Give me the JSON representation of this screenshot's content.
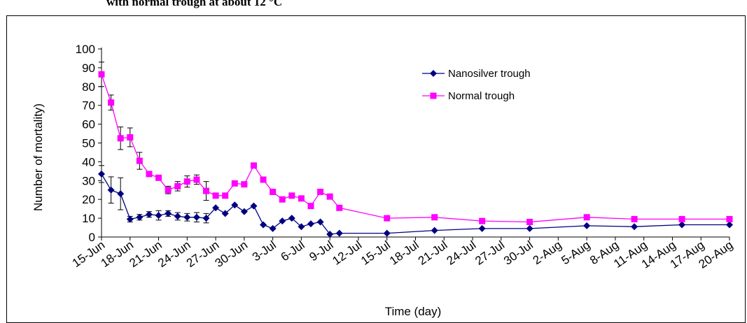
{
  "caption": "with normal trough at about 12 °C",
  "chart_data": {
    "type": "line",
    "title": "",
    "xlabel": "Time (day)",
    "ylabel": "Number of mortality)",
    "ylim": [
      0,
      100
    ],
    "yticks": [
      0,
      10,
      20,
      30,
      40,
      50,
      60,
      70,
      80,
      90,
      100
    ],
    "x_range_days": "15-Jun to 20-Aug",
    "xtick_labels": [
      "15-Jun",
      "18-Jun",
      "21-Jun",
      "24-Jun",
      "27-Jun",
      "30-Jun",
      "3-Jul",
      "6-Jul",
      "9-Jul",
      "12-Jul",
      "15-Jul",
      "18-Jul",
      "21-Jul",
      "24-Jul",
      "27-Jul",
      "30-Jul",
      "2-Aug",
      "5-Aug",
      "8-Aug",
      "11-Aug",
      "14-Aug",
      "17-Aug",
      "20-Aug"
    ],
    "legend_position": "top-right",
    "grid": false,
    "series": [
      {
        "name": "Nanosilver trough",
        "color": "#00007f",
        "marker": "diamond",
        "points": [
          {
            "x": "15-Jun",
            "y": 33.5,
            "err": 4.5
          },
          {
            "x": "16-Jun",
            "y": 25,
            "err": 7
          },
          {
            "x": "17-Jun",
            "y": 23,
            "err": 8.5
          },
          {
            "x": "18-Jun",
            "y": 9.5,
            "err": 1.5
          },
          {
            "x": "19-Jun",
            "y": 10.5,
            "err": 1.5
          },
          {
            "x": "20-Jun",
            "y": 12,
            "err": 1.5
          },
          {
            "x": "21-Jun",
            "y": 11.5,
            "err": 2.5
          },
          {
            "x": "22-Jun",
            "y": 12.5,
            "err": 1.5
          },
          {
            "x": "23-Jun",
            "y": 11,
            "err": 2
          },
          {
            "x": "24-Jun",
            "y": 10.5,
            "err": 2
          },
          {
            "x": "25-Jun",
            "y": 10.5,
            "err": 2.5
          },
          {
            "x": "26-Jun",
            "y": 10,
            "err": 2.5
          },
          {
            "x": "27-Jun",
            "y": 15.5
          },
          {
            "x": "28-Jun",
            "y": 12.5
          },
          {
            "x": "29-Jun",
            "y": 17
          },
          {
            "x": "30-Jun",
            "y": 13.5
          },
          {
            "x": "1-Jul",
            "y": 16.5
          },
          {
            "x": "2-Jul",
            "y": 6.5
          },
          {
            "x": "3-Jul",
            "y": 4.5
          },
          {
            "x": "4-Jul",
            "y": 8.5
          },
          {
            "x": "5-Jul",
            "y": 10
          },
          {
            "x": "6-Jul",
            "y": 5.5
          },
          {
            "x": "7-Jul",
            "y": 7
          },
          {
            "x": "8-Jul",
            "y": 8
          },
          {
            "x": "9-Jul",
            "y": 1.5
          },
          {
            "x": "10-Jul",
            "y": 2
          },
          {
            "x": "15-Jul",
            "y": 2
          },
          {
            "x": "20-Jul",
            "y": 3.5
          },
          {
            "x": "25-Jul",
            "y": 4.5
          },
          {
            "x": "30-Jul",
            "y": 4.5
          },
          {
            "x": "5-Aug",
            "y": 6
          },
          {
            "x": "10-Aug",
            "y": 5.5
          },
          {
            "x": "15-Aug",
            "y": 6.5
          },
          {
            "x": "20-Aug",
            "y": 6.5
          }
        ]
      },
      {
        "name": "Normal trough",
        "color": "#ff00ff",
        "marker": "square",
        "points": [
          {
            "x": "15-Jun",
            "y": 86.5,
            "err": 6.5
          },
          {
            "x": "16-Jun",
            "y": 71.5,
            "err": 4
          },
          {
            "x": "17-Jun",
            "y": 52.5,
            "err": 6
          },
          {
            "x": "18-Jun",
            "y": 53,
            "err": 5
          },
          {
            "x": "19-Jun",
            "y": 40.5,
            "err": 4.5
          },
          {
            "x": "20-Jun",
            "y": 33.5
          },
          {
            "x": "21-Jun",
            "y": 31.5
          },
          {
            "x": "22-Jun",
            "y": 25,
            "err": 2
          },
          {
            "x": "23-Jun",
            "y": 27,
            "err": 2.5
          },
          {
            "x": "24-Jun",
            "y": 29.5,
            "err": 3
          },
          {
            "x": "25-Jun",
            "y": 30.5,
            "err": 2.5
          },
          {
            "x": "26-Jun",
            "y": 24.5,
            "err": 5
          },
          {
            "x": "27-Jun",
            "y": 22
          },
          {
            "x": "28-Jun",
            "y": 22
          },
          {
            "x": "29-Jun",
            "y": 28.5
          },
          {
            "x": "30-Jun",
            "y": 28
          },
          {
            "x": "1-Jul",
            "y": 38
          },
          {
            "x": "2-Jul",
            "y": 30.5
          },
          {
            "x": "3-Jul",
            "y": 24
          },
          {
            "x": "4-Jul",
            "y": 20
          },
          {
            "x": "5-Jul",
            "y": 22
          },
          {
            "x": "6-Jul",
            "y": 20.5
          },
          {
            "x": "7-Jul",
            "y": 16.5
          },
          {
            "x": "8-Jul",
            "y": 24
          },
          {
            "x": "9-Jul",
            "y": 21.5
          },
          {
            "x": "10-Jul",
            "y": 15.5
          },
          {
            "x": "15-Jul",
            "y": 10
          },
          {
            "x": "20-Jul",
            "y": 10.5
          },
          {
            "x": "25-Jul",
            "y": 8.5
          },
          {
            "x": "30-Jul",
            "y": 8
          },
          {
            "x": "5-Aug",
            "y": 10.5
          },
          {
            "x": "10-Aug",
            "y": 9.5
          },
          {
            "x": "15-Aug",
            "y": 9.5
          },
          {
            "x": "20-Aug",
            "y": 9.5
          }
        ]
      }
    ]
  }
}
